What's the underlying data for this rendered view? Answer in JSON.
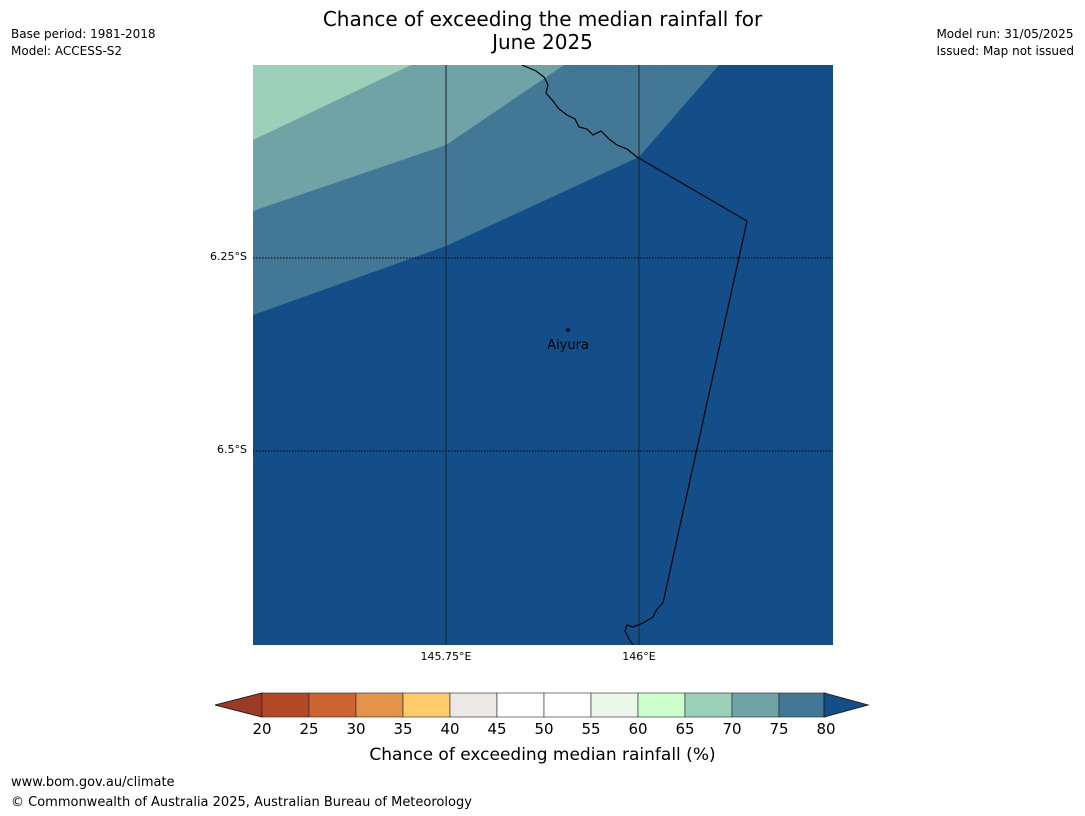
{
  "title_line1": "Chance of exceeding the median rainfall for",
  "title_line2": "June 2025",
  "meta_left": {
    "base_period": "Base period: 1981-2018",
    "model": "Model: ACCESS-S2"
  },
  "meta_right": {
    "model_run": "Model run: 31/05/2025",
    "issued": "Issued: Map not issued"
  },
  "map": {
    "lat_labels": [
      "6.25°S",
      "6.5°S"
    ],
    "lon_labels": [
      "145.75°E",
      "146°E"
    ],
    "place": {
      "name": "Aiyura"
    },
    "colors": {
      "c65_70": "#9dd0b8",
      "c70_75": "#6fa3a6",
      "c75_80": "#427895",
      "c80p": "#144e88"
    }
  },
  "colorbar": {
    "ticks": [
      "20",
      "25",
      "30",
      "35",
      "40",
      "45",
      "50",
      "55",
      "60",
      "65",
      "70",
      "75",
      "80"
    ],
    "colors": [
      "#b24a26",
      "#cc6431",
      "#e3944a",
      "#fecb6b",
      "#ece8e4",
      "#ffffff",
      "#ffffff",
      "#eaf7ea",
      "#ccffcc",
      "#9dd0b8",
      "#6fa3a6",
      "#427895"
    ],
    "under_color": "#9c3a24",
    "over_color": "#144e88",
    "label": "Chance of exceeding median rainfall (%)"
  },
  "footer": {
    "url": "www.bom.gov.au/climate",
    "copyright": "© Commonwealth of Australia 2025, Australian Bureau of Meteorology"
  }
}
